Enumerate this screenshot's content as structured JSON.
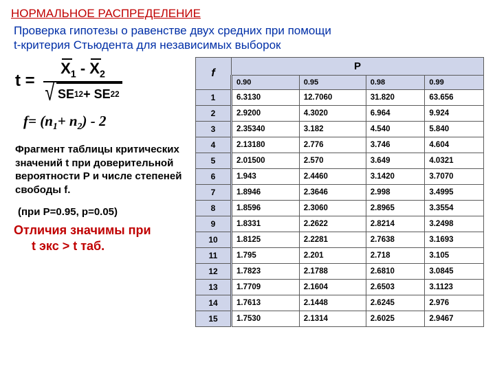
{
  "title": "НОРМАЛЬНОЕ РАСПРЕДЕЛЕНИЕ",
  "subtitle_l1": "Проверка гипотезы о равенстве  двух средних при помощи",
  "subtitle_l2": " t-критерия Стьюдента для независимых выборок",
  "formula2": "f= (n<sub>1</sub>+ n<sub>2</sub>) - 2",
  "caption": "Фрагмент таблицы критических значений t  при доверительной вероятности Р и  числе степеней свободы f.",
  "note": "(при Р=0.95, р=0.05)",
  "conclusion_l1": "Отличия значимы при",
  "conclusion_l2": "t экс > t таб.",
  "table": {
    "f_label": "f",
    "p_label": "P",
    "p_levels": [
      "0.90",
      "0.95",
      "0.98",
      "0.99"
    ],
    "rows": [
      {
        "f": "1",
        "v": [
          "6.3130",
          "12.7060",
          "31.820",
          "63.656"
        ]
      },
      {
        "f": "2",
        "v": [
          "2.9200",
          "4.3020",
          "6.964",
          "9.924"
        ]
      },
      {
        "f": "3",
        "v": [
          "2.35340",
          "3.182",
          "4.540",
          "5.840"
        ]
      },
      {
        "f": "4",
        "v": [
          "2.13180",
          "2.776",
          "3.746",
          "4.604"
        ]
      },
      {
        "f": "5",
        "v": [
          "2.01500",
          "2.570",
          "3.649",
          "4.0321"
        ]
      },
      {
        "f": "6",
        "v": [
          "1.943",
          "2.4460",
          "3.1420",
          "3.7070"
        ]
      },
      {
        "f": "7",
        "v": [
          "1.8946",
          "2.3646",
          "2.998",
          "3.4995"
        ]
      },
      {
        "f": "8",
        "v": [
          "1.8596",
          "2.3060",
          "2.8965",
          "3.3554"
        ]
      },
      {
        "f": "9",
        "v": [
          "1.8331",
          "2.2622",
          "2.8214",
          "3.2498"
        ]
      },
      {
        "f": "10",
        "v": [
          "1.8125",
          "2.2281",
          "2.7638",
          "3.1693"
        ]
      },
      {
        "f": "11",
        "v": [
          "1.795",
          "2.201",
          "2.718",
          "3.105"
        ]
      },
      {
        "f": "12",
        "v": [
          "1.7823",
          "2.1788",
          "2.6810",
          "3.0845"
        ]
      },
      {
        "f": "13",
        "v": [
          "1.7709",
          "2.1604",
          "2.6503",
          "3.1123"
        ]
      },
      {
        "f": "14",
        "v": [
          "1.7613",
          "2.1448",
          "2.6245",
          "2.976"
        ]
      },
      {
        "f": "15",
        "v": [
          "1.7530",
          "2.1314",
          "2.6025",
          "2.9467"
        ]
      }
    ]
  },
  "colors": {
    "accent_red": "#c00000",
    "accent_blue": "#002fa7",
    "th_bg": "#cfd5ea",
    "border": "#5a5a5a",
    "bg": "#ffffff"
  },
  "fontsize": {
    "title": 17,
    "subtitle": 17,
    "caption": 15,
    "formula": 22,
    "table": 12
  }
}
